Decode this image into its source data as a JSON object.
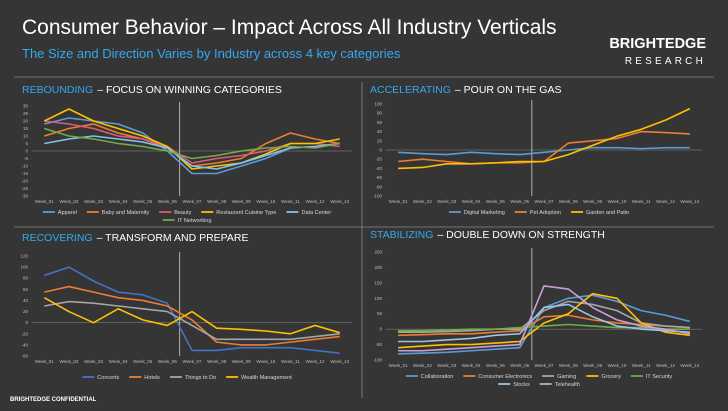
{
  "header": {
    "title": "Consumer Behavior – Impact Across All Industry Verticals",
    "subtitle": "The Size and Direction Varies by Industry across 4 key categories",
    "logo_top": "BRIGHTEDGE",
    "logo_bottom": "RESEARCH"
  },
  "footer": "BRIGHTEDGE CONFIDENTIAL",
  "chart_data": [
    {
      "type": "line",
      "title_highlight": "REBOUNDING",
      "title": "– FOCUS ON WINNING CATEGORIES",
      "categories": [
        "Week_01",
        "Week_02",
        "Week_03",
        "Week_04",
        "Week_05",
        "Week_06",
        "Week_07",
        "Week_08",
        "Week_09",
        "Week_10",
        "Week_11",
        "Week_12",
        "Week_13"
      ],
      "ylim": [
        -30,
        30
      ],
      "yticks": [
        30,
        25,
        20,
        15,
        10,
        5,
        0,
        -5,
        -10,
        -15,
        -20,
        -25,
        -30
      ],
      "series": [
        {
          "name": "Apparel",
          "color": "#5b9bd5",
          "values": [
            18,
            22,
            20,
            18,
            12,
            0,
            -15,
            -15,
            -10,
            -5,
            2,
            3,
            5
          ]
        },
        {
          "name": "Baby and Maternity",
          "color": "#ed7d31",
          "values": [
            10,
            15,
            18,
            12,
            8,
            2,
            -10,
            -8,
            -5,
            5,
            12,
            8,
            5
          ]
        },
        {
          "name": "Beauty",
          "color": "#e05a7a",
          "values": [
            20,
            18,
            15,
            10,
            8,
            3,
            -8,
            -5,
            -3,
            0,
            5,
            5,
            3
          ]
        },
        {
          "name": "Restaurant Cuisine Type",
          "color": "#ffc000",
          "values": [
            20,
            28,
            20,
            15,
            10,
            3,
            -12,
            -10,
            -8,
            -2,
            5,
            5,
            8
          ]
        },
        {
          "name": "Data Center",
          "color": "#7fc4f0",
          "values": [
            5,
            8,
            10,
            8,
            6,
            2,
            -10,
            -12,
            -8,
            -3,
            2,
            3,
            5
          ]
        },
        {
          "name": "IT Networking",
          "color": "#70ad47",
          "values": [
            15,
            10,
            8,
            5,
            3,
            0,
            -5,
            -3,
            0,
            2,
            3,
            2,
            5
          ]
        }
      ]
    },
    {
      "type": "line",
      "title_highlight": "ACCELERATING",
      "title": "– POUR ON THE GAS",
      "categories": [
        "Week_01",
        "Week_02",
        "Week_03",
        "Week_04",
        "Week_05",
        "Week_06",
        "Week_07",
        "Week_08",
        "Week_09",
        "Week_10",
        "Week_11",
        "Week_12",
        "Week_13"
      ],
      "ylim": [
        -100,
        100
      ],
      "yticks": [
        100,
        80,
        60,
        40,
        20,
        0,
        -20,
        -40,
        -60,
        -80,
        -100
      ],
      "series": [
        {
          "name": "Digital Marketing",
          "color": "#5b9bd5",
          "values": [
            -5,
            -8,
            -10,
            -5,
            -8,
            -10,
            -5,
            0,
            5,
            5,
            3,
            5,
            5
          ]
        },
        {
          "name": "Pet Adoption",
          "color": "#ed7d31",
          "values": [
            -25,
            -20,
            -25,
            -30,
            -28,
            -28,
            -25,
            15,
            20,
            25,
            40,
            38,
            35
          ]
        },
        {
          "name": "Garden and Patio",
          "color": "#ffc000",
          "values": [
            -40,
            -38,
            -30,
            -30,
            -28,
            -25,
            -25,
            -10,
            10,
            30,
            45,
            65,
            90
          ]
        }
      ]
    },
    {
      "type": "line",
      "title_highlight": "RECOVERING",
      "title": "– TRANSFORM AND PREPARE",
      "categories": [
        "Week_01",
        "Week_02",
        "Week_03",
        "Week_04",
        "Week_05",
        "Week_06",
        "Week_07",
        "Week_08",
        "Week_09",
        "Week_10",
        "Week_11",
        "Week_12",
        "Week_13"
      ],
      "ylim": [
        -60,
        120
      ],
      "yticks": [
        120,
        100,
        80,
        60,
        40,
        20,
        0,
        -20,
        -40,
        -60
      ],
      "series": [
        {
          "name": "Concerts",
          "color": "#4472c4",
          "values": [
            85,
            100,
            75,
            55,
            50,
            35,
            -50,
            -50,
            -45,
            -45,
            -45,
            -50,
            -55
          ]
        },
        {
          "name": "Hotels",
          "color": "#ed7d31",
          "values": [
            55,
            65,
            55,
            45,
            40,
            30,
            5,
            -35,
            -40,
            -40,
            -35,
            -30,
            -25
          ]
        },
        {
          "name": "Things to Do",
          "color": "#a5a5a5",
          "values": [
            30,
            38,
            35,
            30,
            25,
            20,
            -5,
            -30,
            -30,
            -30,
            -30,
            -25,
            -20
          ]
        },
        {
          "name": "Wealth Management",
          "color": "#ffc000",
          "values": [
            45,
            20,
            0,
            25,
            5,
            -5,
            20,
            -10,
            -12,
            -15,
            -20,
            -5,
            -18
          ]
        }
      ]
    },
    {
      "type": "line",
      "title_highlight": "STABILIZING",
      "title": "– DOUBLE DOWN ON STRENGTH",
      "categories": [
        "Week_01",
        "Week_02",
        "Week_03",
        "Week_04",
        "Week_05",
        "Week_06",
        "Week_07",
        "Week_08",
        "Week_09",
        "Week_10",
        "Week_11",
        "Week_12",
        "Week_13"
      ],
      "ylim": [
        -100,
        250
      ],
      "yticks": [
        250,
        200,
        150,
        100,
        50,
        0,
        -50,
        -100
      ],
      "series": [
        {
          "name": "Collaboration",
          "color": "#5b9bd5",
          "values": [
            -80,
            -78,
            -75,
            -70,
            -65,
            -60,
            70,
            100,
            110,
            90,
            60,
            45,
            25
          ]
        },
        {
          "name": "Consumer Electronics",
          "color": "#ed7d31",
          "values": [
            -20,
            -18,
            -15,
            -15,
            -10,
            -5,
            40,
            45,
            30,
            20,
            15,
            10,
            5
          ]
        },
        {
          "name": "Gaming",
          "color": "#a5a5a5",
          "values": [
            -10,
            -10,
            -8,
            -5,
            0,
            0,
            60,
            90,
            80,
            60,
            20,
            10,
            5
          ]
        },
        {
          "name": "Grocery",
          "color": "#ffc000",
          "values": [
            -60,
            -55,
            -50,
            -50,
            -45,
            -40,
            20,
            50,
            115,
            100,
            20,
            -10,
            -20
          ]
        },
        {
          "name": "IT Security",
          "color": "#70ad47",
          "values": [
            -5,
            -5,
            -3,
            0,
            0,
            5,
            10,
            15,
            10,
            5,
            5,
            0,
            0
          ]
        },
        {
          "name": "Stocks",
          "color": "#9dc3e6",
          "values": [
            -40,
            -40,
            -35,
            -30,
            -20,
            -15,
            70,
            80,
            40,
            10,
            0,
            -5,
            -10
          ]
        },
        {
          "name": "Telehealth",
          "color": "#c9a0dc",
          "values": [
            -70,
            -70,
            -65,
            -60,
            -55,
            -50,
            140,
            130,
            70,
            30,
            10,
            0,
            -15
          ]
        }
      ]
    }
  ]
}
